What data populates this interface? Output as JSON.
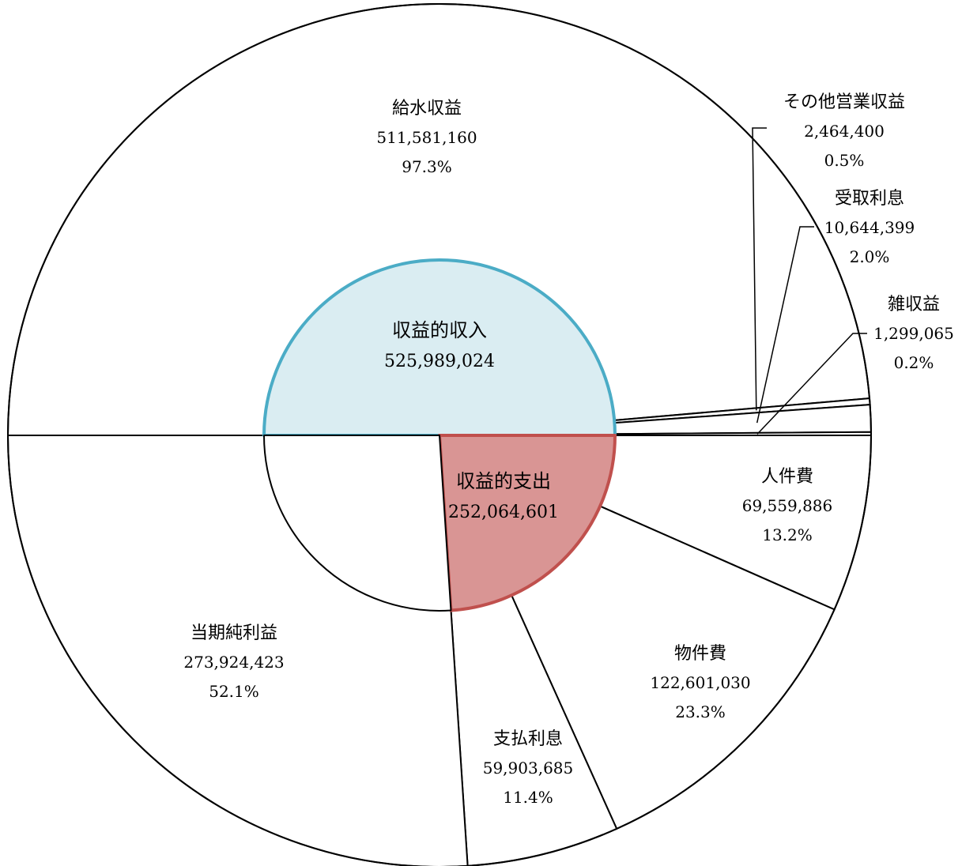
{
  "chart_data": {
    "type": "pie",
    "outer_ring": [
      {
        "label": "給水収益",
        "value": 511581160,
        "value_text": "511,581,160",
        "percent_text": "97.3%"
      },
      {
        "label": "その他営業収益",
        "value": 2464400,
        "value_text": "2,464,400",
        "percent_text": "0.5%"
      },
      {
        "label": "受取利息",
        "value": 10644399,
        "value_text": "10,644,399",
        "percent_text": "2.0%"
      },
      {
        "label": "雑収益",
        "value": 1299065,
        "value_text": "1,299,065",
        "percent_text": "0.2%"
      },
      {
        "label": "人件費",
        "value": 69559886,
        "value_text": "69,559,886",
        "percent_text": "13.2%"
      },
      {
        "label": "物件費",
        "value": 122601030,
        "value_text": "122,601,030",
        "percent_text": "23.3%"
      },
      {
        "label": "支払利息",
        "value": 59903685,
        "value_text": "59,903,685",
        "percent_text": "11.4%"
      },
      {
        "label": "当期純利益",
        "value": 273924423,
        "value_text": "273,924,423",
        "percent_text": "52.1%"
      }
    ],
    "inner_ring": [
      {
        "label": "収益的収入",
        "value": 525989024,
        "value_text": "525,989,024",
        "color": "#daedf2",
        "stroke": "#4bacc6"
      },
      {
        "label": "収益的支出",
        "value": 252064601,
        "value_text": "252,064,601",
        "color": "#d99594",
        "stroke": "#c0504d"
      }
    ]
  }
}
